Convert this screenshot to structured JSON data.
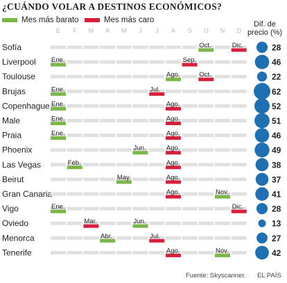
{
  "title": "¿CUÁNDO VOLAR A DESTINOS ECONÓMICOS?",
  "legend": {
    "cheap": {
      "label": "Mes más barato",
      "color": "#7ab648"
    },
    "expensive": {
      "label": "Mes más caro",
      "color": "#d81e3a"
    }
  },
  "header": {
    "diff_line1": "Dif. de",
    "diff_line2": "precio (%)"
  },
  "footer": {
    "source": "Fuente: Skyscanner.",
    "credit": "EL PAÍS"
  },
  "colors": {
    "track": "#e0e0e0",
    "bubble": "#1f6fb3"
  },
  "chart_data": {
    "type": "table",
    "months": [
      "E",
      "F",
      "M",
      "A",
      "M",
      "J",
      "J",
      "A",
      "S",
      "O",
      "N",
      "D"
    ],
    "rows": [
      {
        "city": "Sofía",
        "cheap": {
          "month": 10,
          "label": "Oct."
        },
        "expensive": {
          "month": 12,
          "label": "Dic."
        },
        "diff": 28
      },
      {
        "city": "Liverpool",
        "cheap": {
          "month": 1,
          "label": "Ene."
        },
        "expensive": {
          "month": 9,
          "label": "Sep."
        },
        "diff": 46
      },
      {
        "city": "Toulouse",
        "cheap": {
          "month": 8,
          "label": "Ago."
        },
        "expensive": {
          "month": 10,
          "label": "Oct."
        },
        "diff": 22
      },
      {
        "city": "Brujas",
        "cheap": {
          "month": 1,
          "label": "Ene."
        },
        "expensive": {
          "month": 7,
          "label": "Jul."
        },
        "diff": 62
      },
      {
        "city": "Copenhague",
        "cheap": {
          "month": 1,
          "label": "Ene."
        },
        "expensive": {
          "month": 8,
          "label": "Ago."
        },
        "diff": 52
      },
      {
        "city": "Male",
        "cheap": {
          "month": 1,
          "label": "Ene."
        },
        "expensive": {
          "month": 8,
          "label": "Ago."
        },
        "diff": 51
      },
      {
        "city": "Praia",
        "cheap": {
          "month": 1,
          "label": "Ene."
        },
        "expensive": {
          "month": 8,
          "label": "Ago."
        },
        "diff": 46
      },
      {
        "city": "Phoenix",
        "cheap": {
          "month": 6,
          "label": "Jun."
        },
        "expensive": {
          "month": 8,
          "label": "Ago."
        },
        "diff": 49
      },
      {
        "city": "Las Vegas",
        "cheap": {
          "month": 2,
          "label": "Feb."
        },
        "expensive": {
          "month": 8,
          "label": "Ago."
        },
        "diff": 38
      },
      {
        "city": "Beirut",
        "cheap": {
          "month": 5,
          "label": "May."
        },
        "expensive": {
          "month": 8,
          "label": "Ago."
        },
        "diff": 37
      },
      {
        "city": "Gran Canaria",
        "cheap": {
          "month": 11,
          "label": "Nov."
        },
        "expensive": {
          "month": 8,
          "label": "Ago."
        },
        "diff": 41
      },
      {
        "city": "Vigo",
        "cheap": {
          "month": 1,
          "label": "Ene."
        },
        "expensive": {
          "month": 12,
          "label": "Dic."
        },
        "diff": 28
      },
      {
        "city": "Oviedo",
        "cheap": {
          "month": 6,
          "label": "Jun."
        },
        "expensive": {
          "month": 3,
          "label": "Mar."
        },
        "diff": 13
      },
      {
        "city": "Menorca",
        "cheap": {
          "month": 4,
          "label": "Abr."
        },
        "expensive": {
          "month": 7,
          "label": "Jul."
        },
        "diff": 27
      },
      {
        "city": "Tenerife",
        "cheap": {
          "month": 11,
          "label": "Nov."
        },
        "expensive": {
          "month": 8,
          "label": "Ago."
        },
        "diff": 42
      }
    ]
  }
}
